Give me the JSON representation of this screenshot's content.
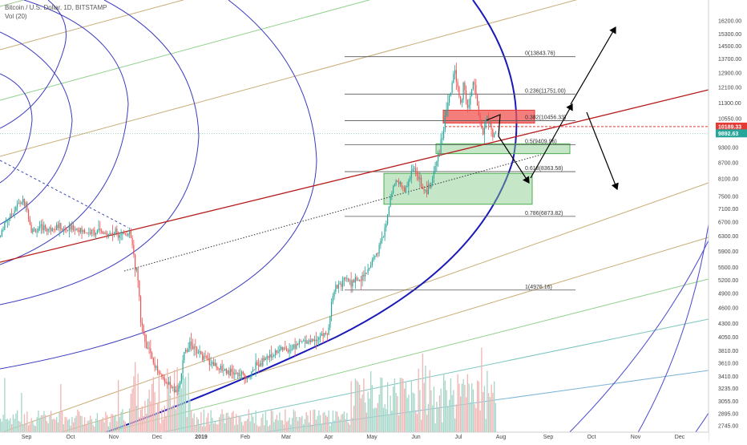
{
  "legend": {
    "title": "Bitcoin / U.S. Dollar, 1D, BITSTAMP",
    "vol": "Vol (20)"
  },
  "colors": {
    "up": "#26a69a",
    "down": "#ef5350",
    "vol_up": "#a5d6c8",
    "vol_down": "#f2b4b2",
    "red_line": "#b71c1c",
    "blue_arc": "#1a1ab8",
    "price_label": "#e53935",
    "last_label": "#26a69a"
  },
  "chart_data": {
    "type": "candlestick",
    "symbol": "Bitcoin / U.S. Dollar",
    "timeframe": "1D",
    "exchange": "BITSTAMP",
    "x_axis": {
      "ticks": [
        "Sep",
        "Oct",
        "Nov",
        "Dec",
        "2019",
        "Feb",
        "Mar",
        "Apr",
        "May",
        "Jun",
        "Jul",
        "Aug",
        "Sep",
        "Oct",
        "Nov",
        "Dec"
      ]
    },
    "y_axis": {
      "scale": "log",
      "ticks": [
        2745,
        2895,
        3055,
        3235,
        3410,
        3610,
        3810,
        4050,
        4300,
        4600,
        4900,
        5200,
        5500,
        5900,
        6300,
        6700,
        7100,
        7500,
        8100,
        8700,
        9300,
        9900,
        10550,
        11300,
        12100,
        12900,
        13700,
        14500,
        15300,
        16200
      ],
      "tick_labels": [
        "2745.00",
        "2895.00",
        "3055.00",
        "3235.00",
        "3410.00",
        "3610.00",
        "3810.00",
        "4050.00",
        "4300.00",
        "4600.00",
        "4900.00",
        "5200.00",
        "5500.00",
        "5900.00",
        "6300.00",
        "6700.00",
        "7100.00",
        "7500.00",
        "8100.00",
        "8700.00",
        "9300.00",
        "9900.00",
        "10550.00",
        "11300.00",
        "12100.00",
        "12900.00",
        "13700.00",
        "14500.00",
        "15300.00",
        "16200.00"
      ]
    },
    "price_labels": [
      {
        "value": 10189.33,
        "text": "10189.33",
        "style": "red"
      },
      {
        "value": 9892.63,
        "text": "9892.63",
        "style": "green"
      }
    ],
    "fibonacci": [
      {
        "level": "0",
        "price": 13843.76,
        "text": "0(13843.76)"
      },
      {
        "level": "0.236",
        "price": 11751.0,
        "text": "0.236(11751.00)"
      },
      {
        "level": "0.382",
        "price": 10456.33,
        "text": "0.382(10456.33)"
      },
      {
        "level": "0.5",
        "price": 9409.96,
        "text": "0.5(9409.96)"
      },
      {
        "level": "0.618",
        "price": 8363.58,
        "text": "0.618(8363.58)"
      },
      {
        "level": "0.786",
        "price": 6873.82,
        "text": "0.786(6873.82)"
      },
      {
        "level": "1",
        "price": 4976.16,
        "text": "1(4976.16)"
      }
    ],
    "zones": [
      {
        "name": "resistance-zone",
        "color": "red",
        "price_top": 10950,
        "price_bottom": 10350
      },
      {
        "name": "support-zone-upper",
        "color": "green",
        "price_top": 9450,
        "price_bottom": 9050
      },
      {
        "name": "support-zone-lower",
        "color": "green",
        "price_top": 8300,
        "price_bottom": 7250
      }
    ],
    "price_path": [
      [
        0,
        6300
      ],
      [
        5,
        6700
      ],
      [
        12,
        6900
      ],
      [
        20,
        7200
      ],
      [
        28,
        7350
      ],
      [
        33,
        7150
      ],
      [
        38,
        6500
      ],
      [
        45,
        6450
      ],
      [
        52,
        6550
      ],
      [
        60,
        6500
      ],
      [
        70,
        6600
      ],
      [
        80,
        6450
      ],
      [
        90,
        6550
      ],
      [
        100,
        6450
      ],
      [
        110,
        6400
      ],
      [
        120,
        6450
      ],
      [
        130,
        6350
      ],
      [
        140,
        6400
      ],
      [
        150,
        6400
      ],
      [
        158,
        6380
      ],
      [
        163,
        6300
      ],
      [
        167,
        5600
      ],
      [
        171,
        5400
      ],
      [
        175,
        4400
      ],
      [
        180,
        4000
      ],
      [
        186,
        3800
      ],
      [
        192,
        3600
      ],
      [
        198,
        3450
      ],
      [
        205,
        3350
      ],
      [
        212,
        3250
      ],
      [
        218,
        3150
      ],
      [
        224,
        3350
      ],
      [
        230,
        3800
      ],
      [
        236,
        3950
      ],
      [
        242,
        3850
      ],
      [
        250,
        3750
      ],
      [
        258,
        3650
      ],
      [
        265,
        3620
      ],
      [
        272,
        3550
      ],
      [
        280,
        3520
      ],
      [
        290,
        3450
      ],
      [
        300,
        3420
      ],
      [
        310,
        3400
      ],
      [
        318,
        3550
      ],
      [
        325,
        3650
      ],
      [
        332,
        3700
      ],
      [
        340,
        3750
      ],
      [
        348,
        3850
      ],
      [
        356,
        3820
      ],
      [
        364,
        3880
      ],
      [
        372,
        3950
      ],
      [
        380,
        3980
      ],
      [
        388,
        4000
      ],
      [
        396,
        4050
      ],
      [
        404,
        4100
      ],
      [
        410,
        4150
      ],
      [
        413,
        4800
      ],
      [
        418,
        5050
      ],
      [
        425,
        5150
      ],
      [
        432,
        5200
      ],
      [
        440,
        5150
      ],
      [
        448,
        5250
      ],
      [
        456,
        5300
      ],
      [
        464,
        5650
      ],
      [
        470,
        5900
      ],
      [
        478,
        6300
      ],
      [
        484,
        7100
      ],
      [
        488,
        7700
      ],
      [
        492,
        7900
      ],
      [
        498,
        8000
      ],
      [
        504,
        7700
      ],
      [
        510,
        8100
      ],
      [
        515,
        8500
      ],
      [
        520,
        8300
      ],
      [
        525,
        7900
      ],
      [
        530,
        7700
      ],
      [
        536,
        7800
      ],
      [
        542,
        8500
      ],
      [
        548,
        9200
      ],
      [
        554,
        10400
      ],
      [
        558,
        11400
      ],
      [
        562,
        11800
      ],
      [
        566,
        13200
      ],
      [
        570,
        12200
      ],
      [
        574,
        11200
      ],
      [
        578,
        12300
      ],
      [
        582,
        11200
      ],
      [
        586,
        11500
      ],
      [
        590,
        12500
      ],
      [
        594,
        11500
      ],
      [
        598,
        10400
      ],
      [
        602,
        9800
      ],
      [
        606,
        10700
      ],
      [
        610,
        10400
      ],
      [
        614,
        9600
      ],
      [
        618,
        9900
      ]
    ]
  }
}
